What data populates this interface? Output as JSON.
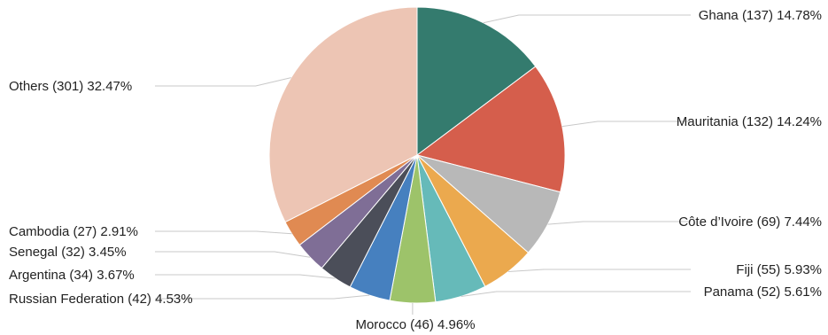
{
  "chart_data": {
    "type": "pie",
    "slices": [
      {
        "label": "Ghana",
        "value": 137,
        "percent": "14.78%",
        "color": "#347b6e",
        "text": "Ghana (137) 14.78%"
      },
      {
        "label": "Mauritania",
        "value": 132,
        "percent": "14.24%",
        "color": "#d55e4c",
        "text": "Mauritania (132) 14.24%"
      },
      {
        "label": "Côte d'Ivoire",
        "value": 69,
        "percent": "7.44%",
        "color": "#b8b8b8",
        "text": "Côte d’Ivoire (69) 7.44%"
      },
      {
        "label": "Fiji",
        "value": 55,
        "percent": "5.93%",
        "color": "#eba94e",
        "text": "Fiji (55) 5.93%"
      },
      {
        "label": "Panama",
        "value": 52,
        "percent": "5.61%",
        "color": "#66bab9",
        "text": "Panama (52) 5.61%"
      },
      {
        "label": "Morocco",
        "value": 46,
        "percent": "4.96%",
        "color": "#9dc36a",
        "text": "Morocco (46) 4.96%"
      },
      {
        "label": "Russian Federation",
        "value": 42,
        "percent": "4.53%",
        "color": "#4680bf",
        "text": "Russian Federation (42) 4.53%"
      },
      {
        "label": "Argentina",
        "value": 34,
        "percent": "3.67%",
        "color": "#4b4e59",
        "text": "Argentina (34) 3.67%"
      },
      {
        "label": "Senegal",
        "value": 32,
        "percent": "3.45%",
        "color": "#7f6e96",
        "text": "Senegal (32) 3.45%"
      },
      {
        "label": "Cambodia",
        "value": 27,
        "percent": "2.91%",
        "color": "#e08a52",
        "text": "Cambodia (27) 2.91%"
      },
      {
        "label": "Others",
        "value": 301,
        "percent": "32.47%",
        "color": "#edc5b4",
        "text": "Others (301) 32.47%"
      }
    ]
  }
}
